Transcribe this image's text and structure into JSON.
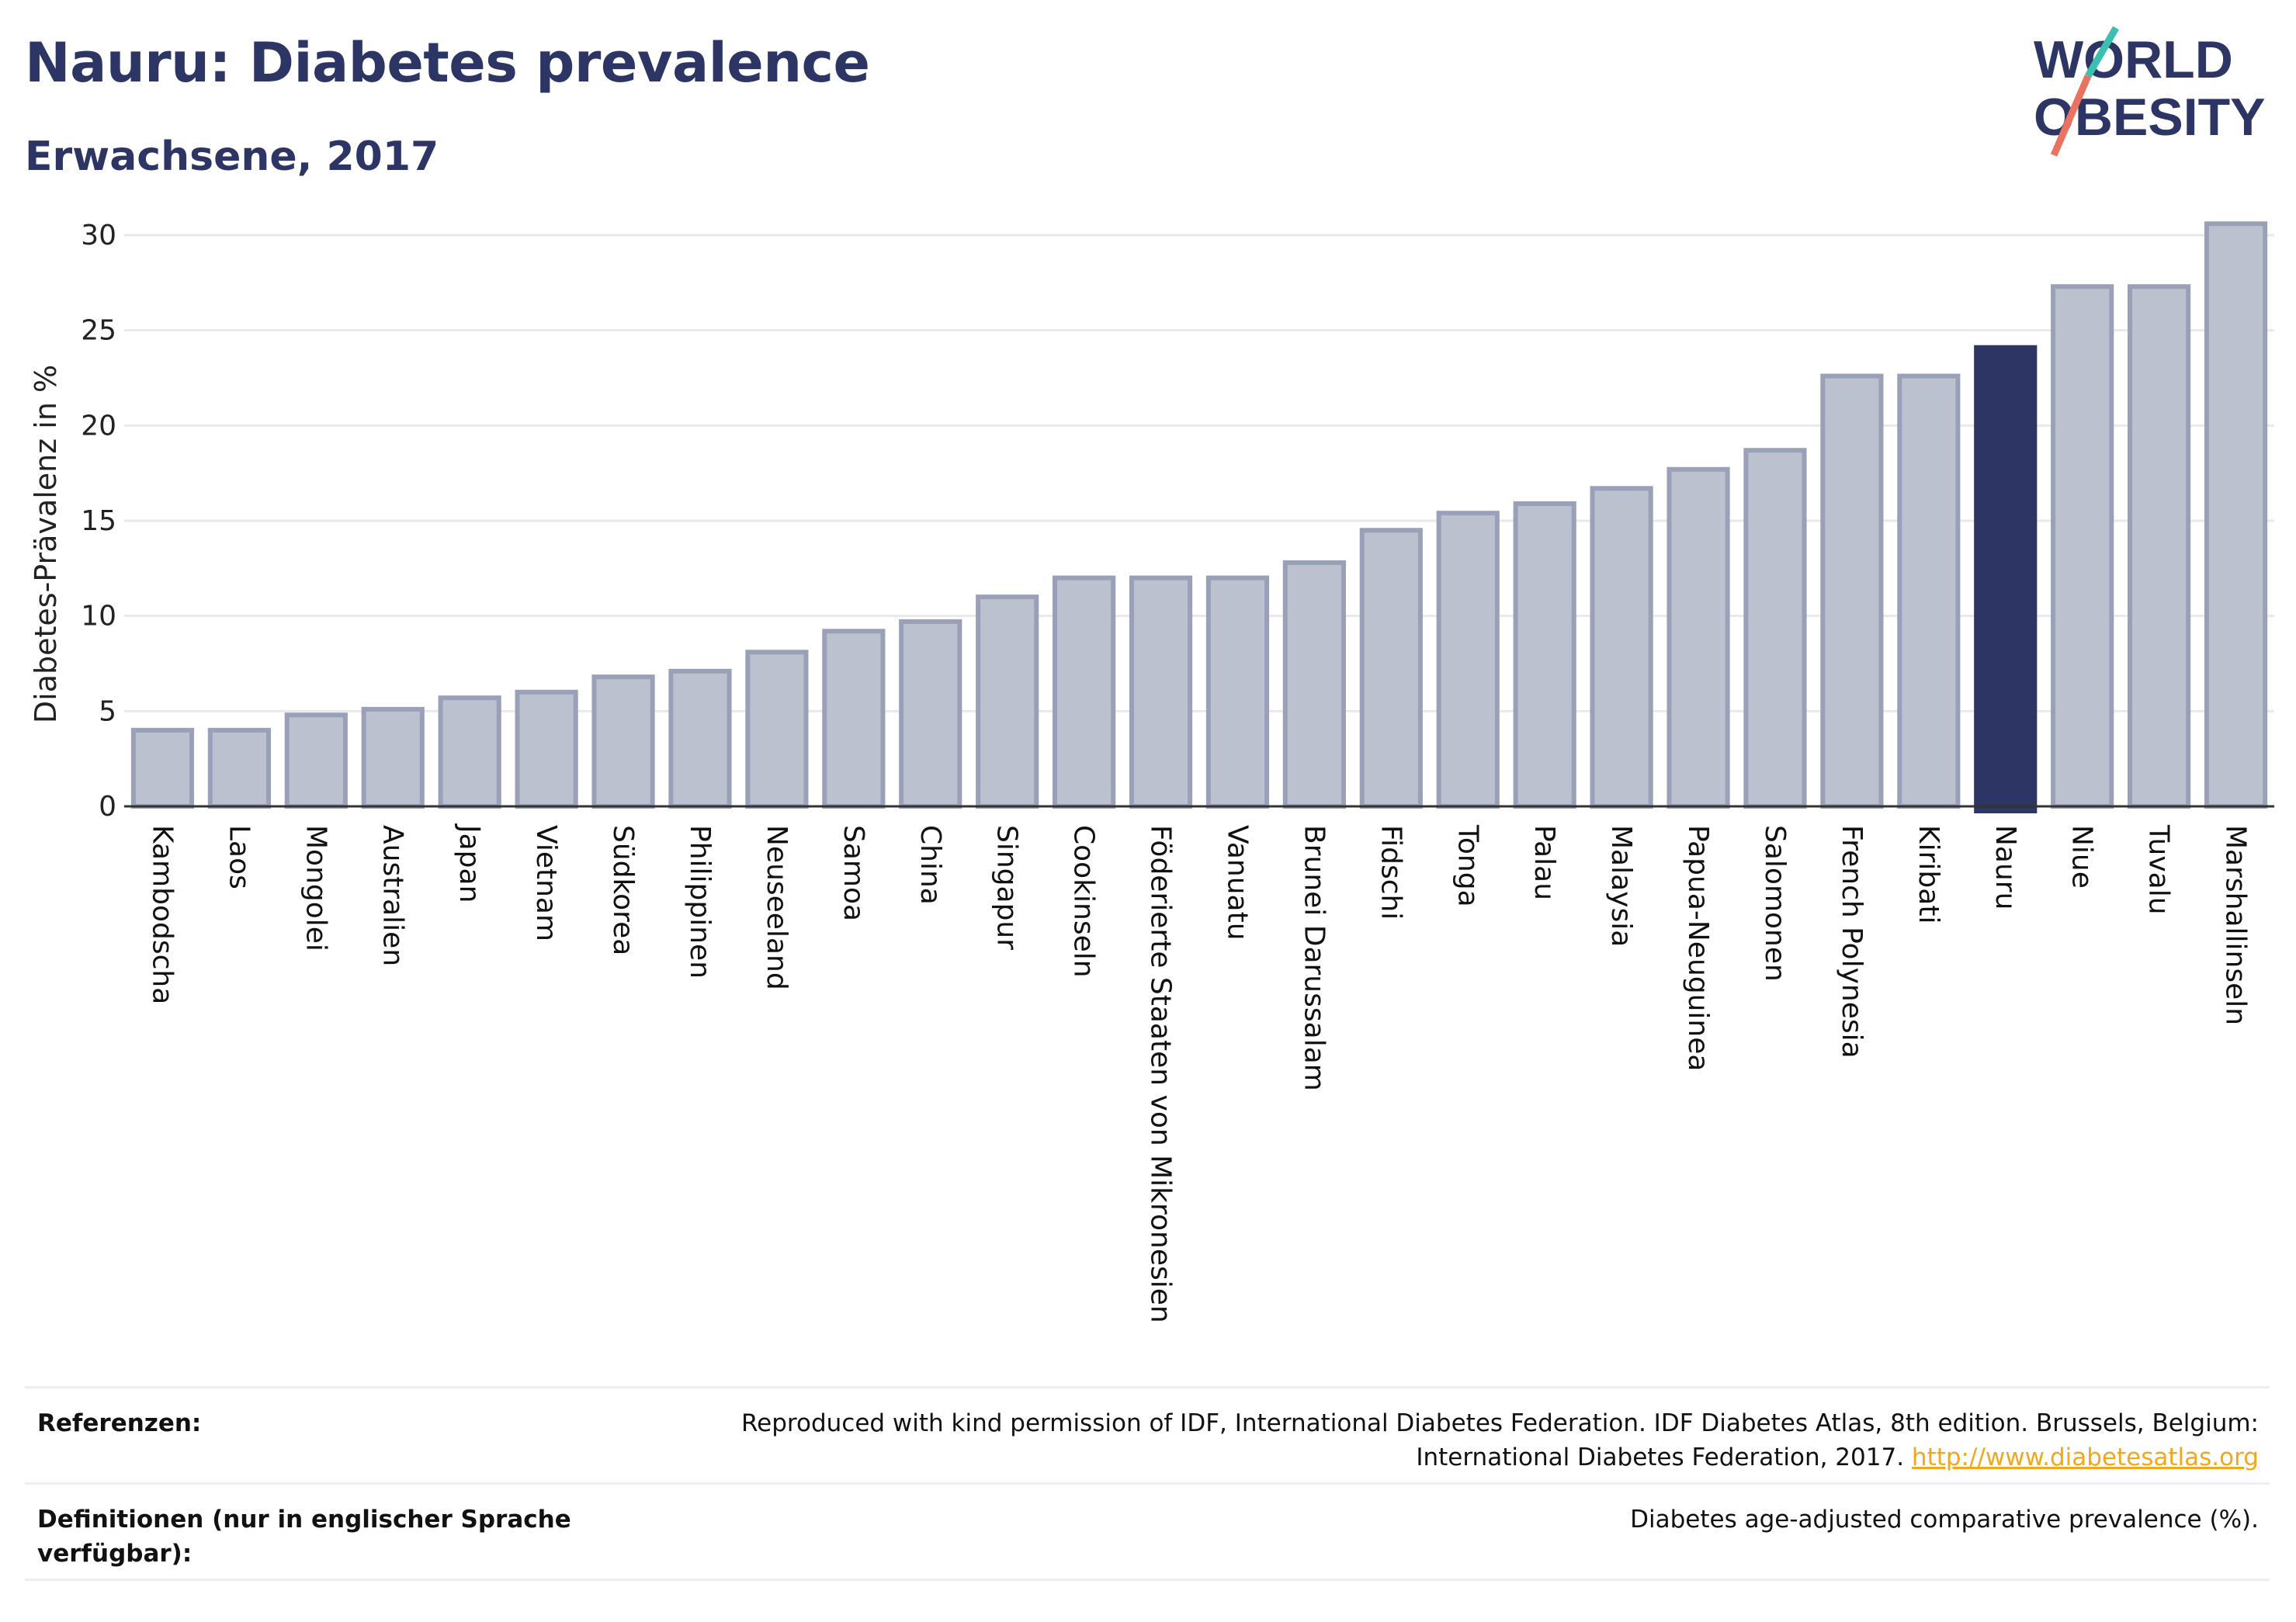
{
  "title": "Nauru: Diabetes prevalence",
  "subtitle": "Erwachsene, 2017",
  "logo": {
    "line1": "WORLD",
    "line2": "OBESITY"
  },
  "colors": {
    "bar": "#bcc1cf",
    "bar_border": "#9aa0b8",
    "highlight": "#2c3563",
    "text": "#2c3563",
    "grid": "#e8e9ee"
  },
  "chart_data": {
    "type": "bar",
    "ylabel": "Diabetes-Prävalenz in %",
    "xlabel": "",
    "ylim": [
      0,
      31
    ],
    "yticks": [
      0,
      5,
      10,
      15,
      20,
      25,
      30
    ],
    "grid": true,
    "highlight": "Nauru",
    "categories": [
      "Kambodscha",
      "Laos",
      "Mongolei",
      "Australien",
      "Japan",
      "Vietnam",
      "Südkorea",
      "Philippinen",
      "Neuseeland",
      "Samoa",
      "China",
      "Singapur",
      "Cookinseln",
      "Föderierte Staaten von Mikronesien",
      "Vanuatu",
      "Brunei Darussalam",
      "Fidschi",
      "Tonga",
      "Palau",
      "Malaysia",
      "Papua-Neuguinea",
      "Salomonen",
      "French Polynesia",
      "Kiribati",
      "Nauru",
      "Niue",
      "Tuvalu",
      "Marshallinseln"
    ],
    "values": [
      4.0,
      4.0,
      4.8,
      5.1,
      5.7,
      6.0,
      6.8,
      7.1,
      8.1,
      9.2,
      9.7,
      11.0,
      12.0,
      12.0,
      12.0,
      12.8,
      14.5,
      15.4,
      15.9,
      16.7,
      17.7,
      18.7,
      22.6,
      22.6,
      24.1,
      27.3,
      27.3,
      30.6
    ]
  },
  "footer": {
    "references_label": "Referenzen:",
    "references_text": "Reproduced with kind permission of IDF, International Diabetes Federation. IDF Diabetes Atlas, 8th edition. Brussels, Belgium:",
    "references_text2": "International Diabetes Federation, 2017.",
    "references_link": "http://www.diabetesatlas.org",
    "definitions_label_1": "Definitionen (nur in englischer Sprache",
    "definitions_label_2": "verfügbar):",
    "definitions_text": "Diabetes age-adjusted comparative prevalence (%)."
  }
}
